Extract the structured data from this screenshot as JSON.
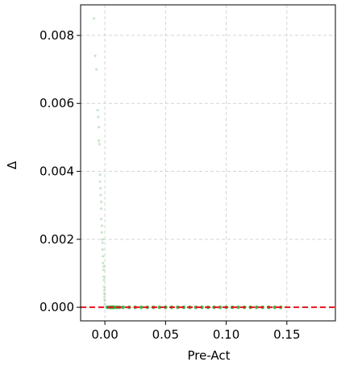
{
  "chart_data": {
    "type": "scatter",
    "title": "",
    "xlabel": "Pre-Act",
    "ylabel": "Δ",
    "xlim": [
      -0.02,
      0.19
    ],
    "ylim": [
      -0.0004,
      0.0089
    ],
    "xticks": [
      0.0,
      0.05,
      0.1,
      0.15
    ],
    "xtick_labels": [
      "0.00",
      "0.05",
      "0.10",
      "0.15"
    ],
    "yticks": [
      0.0,
      0.002,
      0.004,
      0.006,
      0.008
    ],
    "ytick_labels": [
      "0.000",
      "0.002",
      "0.004",
      "0.006",
      "0.008"
    ],
    "grid": true,
    "grid_style": "dashed",
    "reference_line": {
      "y": 0.0,
      "color": "#e8141c",
      "style": "dashed"
    },
    "point_color": "#2ca02c",
    "series": [
      {
        "points": [
          [
            -0.009,
            0.0085
          ],
          [
            -0.008,
            0.0074
          ],
          [
            -0.007,
            0.007
          ],
          [
            -0.006,
            0.0058
          ],
          [
            -0.0055,
            0.0056
          ],
          [
            -0.005,
            0.0053
          ],
          [
            -0.005,
            0.0049
          ],
          [
            -0.0045,
            0.0048
          ],
          [
            -0.004,
            0.0039
          ],
          [
            -0.004,
            0.0037
          ],
          [
            -0.0035,
            0.0035
          ],
          [
            -0.0035,
            0.0033
          ],
          [
            -0.003,
            0.0031
          ],
          [
            -0.003,
            0.0029
          ],
          [
            -0.003,
            0.0026
          ],
          [
            -0.0025,
            0.0024
          ],
          [
            -0.0025,
            0.0022
          ],
          [
            -0.002,
            0.002
          ],
          [
            -0.002,
            0.0019
          ],
          [
            -0.002,
            0.0017
          ],
          [
            -0.0015,
            0.0015
          ],
          [
            -0.0015,
            0.0013
          ],
          [
            -0.001,
            0.0012
          ],
          [
            -0.001,
            0.0011
          ],
          [
            -0.001,
            0.0009
          ],
          [
            -0.0008,
            0.0008
          ],
          [
            -0.0006,
            0.0006
          ],
          [
            -0.0005,
            0.0005
          ],
          [
            -0.0004,
            0.0004
          ],
          [
            -0.0003,
            0.0003
          ],
          [
            -0.0002,
            0.0002
          ],
          [
            -0.0001,
            0.0001
          ],
          [
            0.002,
            0.0
          ],
          [
            0.004,
            0.0
          ],
          [
            0.005,
            0.0
          ],
          [
            0.006,
            0.0
          ],
          [
            0.007,
            0.0
          ],
          [
            0.008,
            0.0
          ],
          [
            0.01,
            0.0
          ],
          [
            0.012,
            0.0
          ],
          [
            0.015,
            0.0
          ],
          [
            0.02,
            0.0
          ],
          [
            0.025,
            0.0
          ],
          [
            0.03,
            0.0
          ],
          [
            0.035,
            0.0
          ],
          [
            0.04,
            0.0
          ],
          [
            0.045,
            0.0
          ],
          [
            0.05,
            0.0
          ],
          [
            0.055,
            0.0
          ],
          [
            0.06,
            0.0
          ],
          [
            0.065,
            0.0
          ],
          [
            0.07,
            0.0
          ],
          [
            0.075,
            0.0
          ],
          [
            0.08,
            0.0
          ],
          [
            0.085,
            0.0
          ],
          [
            0.09,
            0.0
          ],
          [
            0.095,
            0.0
          ],
          [
            0.1,
            0.0
          ],
          [
            0.105,
            0.0
          ],
          [
            0.11,
            0.0
          ],
          [
            0.115,
            0.0
          ],
          [
            0.12,
            0.0
          ],
          [
            0.125,
            0.0
          ],
          [
            0.13,
            0.0
          ],
          [
            0.135,
            0.0
          ],
          [
            0.14,
            0.0
          ],
          [
            0.145,
            0.0
          ]
        ]
      }
    ]
  }
}
